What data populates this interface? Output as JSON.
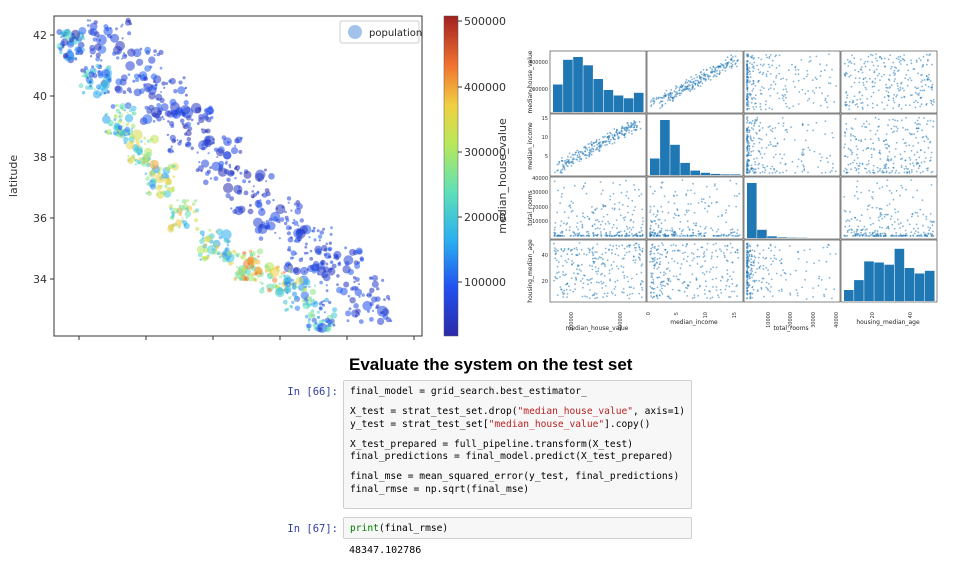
{
  "figure": {
    "map": {
      "ylabel": "latitude",
      "yticks": [
        "42",
        "40",
        "38",
        "36",
        "34"
      ],
      "legend": "population"
    },
    "colorbar": {
      "label": "median_house_value",
      "ticks": [
        "500000",
        "400000",
        "300000",
        "200000",
        "100000"
      ]
    },
    "matrix": {
      "variables": [
        "median_house_value",
        "median_income",
        "total_rooms",
        "housing_median_age"
      ],
      "row0_ticks": [
        "400000",
        "200000"
      ],
      "row1_ticks": [
        "15",
        "10",
        "5"
      ],
      "row2_ticks": [
        "40000",
        "30000",
        "20000",
        "10000"
      ],
      "row3_ticks": [
        "40",
        "20"
      ],
      "col0_ticks": [
        "200000",
        "400000"
      ],
      "col1_ticks": [
        "0",
        "5",
        "10",
        "15"
      ],
      "col2_ticks": [
        "10000",
        "20000",
        "30000",
        "40000"
      ],
      "col3_ticks": [
        "20",
        "40"
      ]
    }
  },
  "notebook": {
    "heading": "Evaluate the system on the test set",
    "cell66": {
      "prompt": "In [66]:",
      "line1": "final_model = grid_search.best_estimator_",
      "line2a": "X_test = strat_test_set.drop(",
      "line2s": "\"median_house_value\"",
      "line2b": ", axis=1)",
      "line3a": "y_test = strat_test_set[",
      "line3s": "\"median_house_value\"",
      "line3b": "].copy()",
      "line4": "X_test_prepared = full_pipeline.transform(X_test)",
      "line5": "final_predictions = final_model.predict(X_test_prepared)",
      "line6": "final_mse = mean_squared_error(y_test, final_predictions)",
      "line7": "final_rmse = np.sqrt(final_mse)"
    },
    "cell67": {
      "prompt": "In [67]:",
      "fn": "print",
      "args": "(final_rmse)",
      "output": "48347.102786"
    }
  }
}
